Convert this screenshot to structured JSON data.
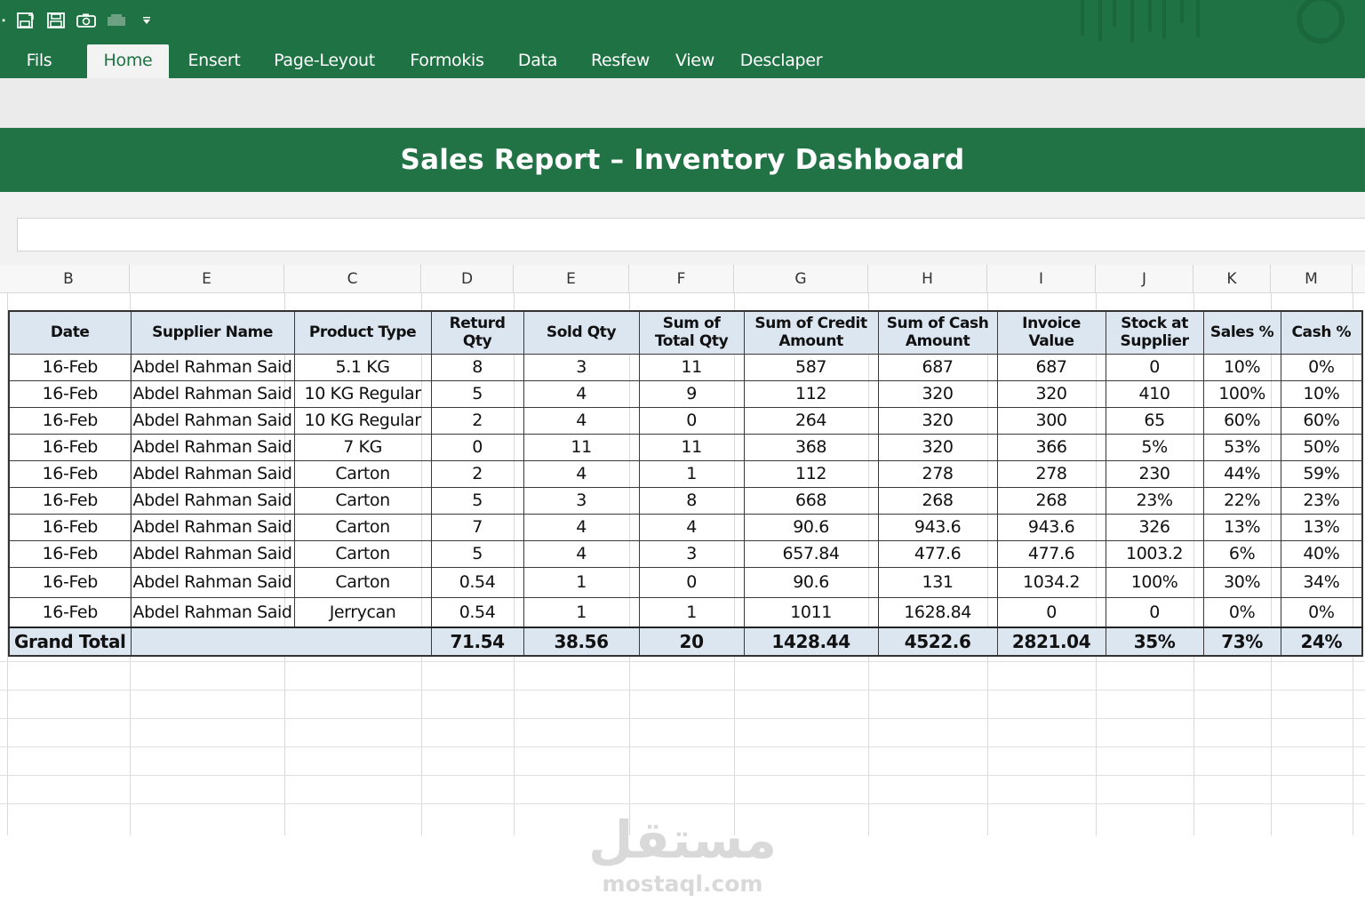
{
  "ribbon": {
    "bg_color": "#1f7244",
    "tabs": [
      "Fils",
      "Home",
      "Ensert",
      "Page-Leyout",
      "Formokis",
      "Data",
      "Resfew",
      "View",
      "Desclaper"
    ],
    "active_tab": "Home"
  },
  "qat": {
    "icons": [
      "save-as-icon",
      "save-icon",
      "camera-icon",
      "print-icon",
      "customize-dropdown-icon"
    ]
  },
  "banner": {
    "title": "Sales Report – Inventory Dashboard",
    "bg_color": "#217346"
  },
  "formula_bar": {
    "value": ""
  },
  "column_letters": [
    "B",
    "E",
    "C",
    "D",
    "E",
    "F",
    "G",
    "H",
    "I",
    "J",
    "K",
    "M"
  ],
  "table": {
    "header_bg": "#dce6f1",
    "headers": [
      "Date",
      "Supplier Name",
      "Product Type",
      "Returd Qty",
      "Sold Qty",
      "Sum of Total Qty",
      "Sum of Credit Amount",
      "Sum of Cash Amount",
      "Invoice Value",
      "Stock at Supplier",
      "Sales %",
      "Cash %"
    ],
    "rows": [
      [
        "16-Feb",
        "Abdel Rahman Said",
        "5.1 KG",
        "8",
        "3",
        "11",
        "587",
        "687",
        "687",
        "0",
        "10%",
        "0%"
      ],
      [
        "16-Feb",
        "Abdel Rahman Said",
        "10 KG Regular",
        "5",
        "4",
        "9",
        "112",
        "320",
        "320",
        "410",
        "100%",
        "10%"
      ],
      [
        "16-Feb",
        "Abdel Rahman Said",
        "10 KG Regular",
        "2",
        "4",
        "0",
        "264",
        "320",
        "300",
        "65",
        "60%",
        "60%"
      ],
      [
        "16-Feb",
        "Abdel Rahman Said",
        "7 KG",
        "0",
        "11",
        "11",
        "368",
        "320",
        "366",
        "5%",
        "53%",
        "50%"
      ],
      [
        "16-Feb",
        "Abdel Rahman Said",
        "Carton",
        "2",
        "4",
        "1",
        "112",
        "278",
        "278",
        "230",
        "44%",
        "59%"
      ],
      [
        "16-Feb",
        "Abdel Rahman Said",
        "Carton",
        "5",
        "3",
        "8",
        "668",
        "268",
        "268",
        "23%",
        "22%",
        "23%"
      ],
      [
        "16-Feb",
        "Abdel Rahman Said",
        "Carton",
        "7",
        "4",
        "4",
        "90.6",
        "943.6",
        "943.6",
        "326",
        "13%",
        "13%"
      ],
      [
        "16-Feb",
        "Abdel Rahman Said",
        "Carton",
        "5",
        "4",
        "3",
        "657.84",
        "477.6",
        "477.6",
        "1003.2",
        "6%",
        "40%"
      ],
      [
        "16-Feb",
        "Abdel Rahman Said",
        "Carton",
        "0.54",
        "1",
        "0",
        "90.6",
        "131",
        "1034.2",
        "100%",
        "30%",
        "34%"
      ],
      [
        "16-Feb",
        "Abdel Rahman Said",
        "Jerrycan",
        "0.54",
        "1",
        "1",
        "1011",
        "1628.84",
        "0",
        "0",
        "0%",
        "0%"
      ]
    ],
    "grand_total": {
      "label": "Grand Total",
      "values": [
        "71.54",
        "38.56",
        "20",
        "1428.44",
        "4522.6",
        "2821.04",
        "35%",
        "73%",
        "24%"
      ]
    }
  },
  "watermark": {
    "arabic": "مستقل",
    "latin": "mostaql.com"
  }
}
